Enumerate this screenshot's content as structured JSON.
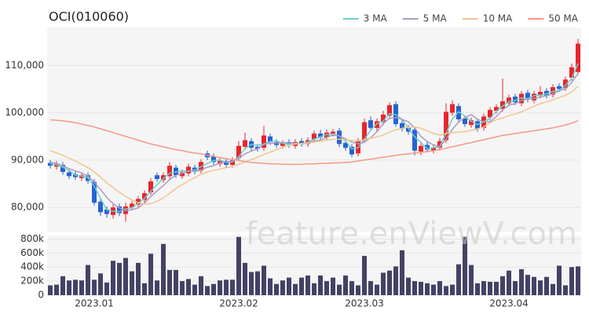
{
  "watermark": "feature.enViewV.com",
  "chart_data": [
    {
      "type": "candlestick",
      "title": "OCI(010060)",
      "up_color": "#e8262c",
      "down_color": "#2463d4",
      "legend": "top-right",
      "grid": true,
      "ylim": [
        74900,
        118000
      ],
      "yticks": [
        {
          "value": 80000,
          "label": "80,000"
        },
        {
          "value": 90000,
          "label": "90,000"
        },
        {
          "value": 100000,
          "label": "100,000"
        },
        {
          "value": 110000,
          "label": "110,000"
        }
      ],
      "open": [
        89400,
        88600,
        89000,
        87400,
        87000,
        86200,
        86800,
        85400,
        81200,
        79600,
        78400,
        80200,
        78600,
        80000,
        80600,
        81600,
        83200,
        86800,
        85800,
        86600,
        88400,
        86600,
        87200,
        88400,
        87800,
        91400,
        90800,
        89200,
        89800,
        89000,
        90400,
        92800,
        94000,
        92800,
        92600,
        95000,
        93800,
        93000,
        93800,
        93000,
        94000,
        93400,
        94400,
        95600,
        94800,
        95600,
        96200,
        93600,
        92800,
        91400,
        94200,
        98400,
        96800,
        98000,
        99400,
        101800,
        97800,
        96800,
        96400,
        91800,
        93200,
        92000,
        92600,
        94200,
        100000,
        101400,
        98800,
        97400,
        98200,
        96800,
        99000,
        100400,
        100800,
        102000,
        103400,
        102000,
        104200,
        102600,
        103600,
        104600,
        103800,
        105600,
        105200,
        107400,
        108600
      ],
      "high": [
        90000,
        89800,
        89600,
        88000,
        87600,
        87400,
        87400,
        86000,
        81800,
        80200,
        80600,
        80800,
        81000,
        81400,
        82400,
        83600,
        86200,
        87400,
        87400,
        89600,
        89000,
        88000,
        89200,
        89000,
        90200,
        92000,
        91400,
        90400,
        90400,
        90600,
        94000,
        95800,
        94600,
        93400,
        97200,
        95600,
        94400,
        94200,
        94400,
        94400,
        94600,
        94800,
        96200,
        96400,
        96400,
        96600,
        96800,
        94200,
        93400,
        94600,
        98800,
        99200,
        98800,
        100400,
        102200,
        102400,
        98400,
        97400,
        97000,
        93600,
        93800,
        93200,
        94600,
        102000,
        102600,
        102000,
        99400,
        99000,
        98800,
        99800,
        101200,
        101800,
        107200,
        103800,
        104000,
        104600,
        104800,
        104600,
        105600,
        105200,
        106000,
        106200,
        107600,
        110400,
        115600
      ],
      "low": [
        88200,
        88000,
        86900,
        86000,
        85800,
        85600,
        85000,
        80400,
        78200,
        77800,
        77600,
        78200,
        77000,
        79400,
        80000,
        81000,
        82600,
        85400,
        85200,
        86000,
        86200,
        86000,
        86600,
        87000,
        87200,
        90000,
        89000,
        88600,
        88400,
        88400,
        89800,
        92200,
        92000,
        91800,
        92000,
        93200,
        92600,
        92400,
        92600,
        92400,
        92800,
        92800,
        93800,
        94200,
        94200,
        95000,
        92800,
        92000,
        90600,
        90800,
        93600,
        96200,
        96200,
        97400,
        98800,
        97000,
        96000,
        95400,
        91000,
        91000,
        91600,
        91400,
        92000,
        93600,
        99400,
        98000,
        97000,
        96800,
        96000,
        96200,
        98400,
        99800,
        100200,
        101400,
        101600,
        101400,
        102200,
        102000,
        103000,
        103000,
        103200,
        104400,
        104600,
        106800,
        108000
      ],
      "close": [
        88800,
        89200,
        87500,
        86600,
        86400,
        86800,
        85600,
        81000,
        79000,
        78600,
        80000,
        78800,
        80200,
        80800,
        81800,
        83000,
        85500,
        86000,
        86800,
        88800,
        86800,
        87400,
        88600,
        87600,
        89600,
        90600,
        89600,
        89800,
        89000,
        90000,
        93000,
        94200,
        92600,
        92400,
        95200,
        93800,
        93200,
        93600,
        93200,
        93800,
        93400,
        94200,
        95600,
        94800,
        95800,
        96000,
        93400,
        92600,
        91200,
        94000,
        98000,
        96800,
        98200,
        99600,
        101600,
        97600,
        96600,
        96000,
        92000,
        93000,
        92200,
        92600,
        94000,
        100200,
        101800,
        98600,
        97600,
        98400,
        96600,
        99200,
        100600,
        101200,
        102400,
        103200,
        102200,
        104000,
        102800,
        104000,
        104400,
        103600,
        105400,
        105000,
        107000,
        109600,
        114600
      ],
      "series": [
        {
          "name": "3 MA",
          "color": "#6fcfc9",
          "values": [
            89200,
            89000,
            88500,
            87800,
            86800,
            86600,
            86300,
            84500,
            81900,
            79500,
            79200,
            79100,
            79700,
            79900,
            80900,
            81900,
            83400,
            84800,
            86100,
            87200,
            87500,
            87700,
            87600,
            87900,
            88600,
            89300,
            89900,
            90000,
            89500,
            89600,
            90700,
            92400,
            93300,
            93100,
            93400,
            93900,
            94100,
            93500,
            93300,
            93500,
            93500,
            93800,
            94400,
            94900,
            95400,
            95500,
            95100,
            94000,
            92400,
            92600,
            94400,
            96300,
            97700,
            98200,
            99800,
            99600,
            98600,
            96700,
            94900,
            93700,
            92400,
            92600,
            92900,
            95600,
            98700,
            100200,
            99300,
            98200,
            97500,
            98100,
            98800,
            100300,
            101400,
            102300,
            102600,
            103100,
            103000,
            103600,
            103700,
            104000,
            104500,
            104700,
            105800,
            107200,
            110400
          ]
        },
        {
          "name": "5 MA",
          "color": "#a99bc4",
          "values": [
            89500,
            89300,
            88800,
            88200,
            87700,
            87300,
            86600,
            85300,
            83800,
            82100,
            80800,
            79900,
            79300,
            79500,
            79900,
            80900,
            82300,
            83500,
            84600,
            85900,
            86800,
            87200,
            87700,
            87600,
            87900,
            88500,
            88800,
            89400,
            89600,
            89800,
            90400,
            91300,
            91900,
            92400,
            93300,
            93600,
            93600,
            93700,
            93600,
            93500,
            93400,
            93600,
            94000,
            94200,
            94800,
            95300,
            95100,
            94500,
            93800,
            93400,
            93800,
            94700,
            96000,
            97700,
            98800,
            99000,
            98600,
            98100,
            96800,
            95000,
            93900,
            93200,
            92800,
            94400,
            96500,
            98000,
            99000,
            99600,
            98600,
            98100,
            98100,
            99200,
            100600,
            101600,
            101900,
            102600,
            102900,
            103000,
            103300,
            103600,
            104000,
            104600,
            105100,
            106400,
            108300
          ]
        },
        {
          "name": "10 MA",
          "color": "#f0c592",
          "values": [
            92000,
            91500,
            91000,
            90400,
            89800,
            89100,
            88400,
            87500,
            86400,
            85200,
            84200,
            83200,
            82300,
            81600,
            81000,
            80700,
            80800,
            81300,
            82000,
            83000,
            84000,
            84800,
            85600,
            86300,
            87000,
            87500,
            87800,
            88100,
            88400,
            88700,
            89100,
            89600,
            90100,
            90600,
            91200,
            91700,
            92200,
            92700,
            93100,
            93400,
            93500,
            93600,
            93800,
            94000,
            94200,
            94400,
            94400,
            94300,
            94100,
            94000,
            94300,
            94600,
            94900,
            95300,
            95900,
            96400,
            96700,
            97000,
            97000,
            96700,
            96200,
            95600,
            95300,
            95600,
            95800,
            95900,
            96000,
            96300,
            96600,
            97000,
            97900,
            98500,
            98900,
            99400,
            99700,
            100200,
            100800,
            101400,
            101900,
            102300,
            102700,
            103200,
            103700,
            104400,
            105600
          ]
        },
        {
          "name": "50 MA",
          "color": "#f29a86",
          "values": [
            98500,
            98400,
            98300,
            98100,
            97900,
            97600,
            97300,
            97000,
            96600,
            96200,
            95800,
            95400,
            95000,
            94600,
            94200,
            93800,
            93400,
            93100,
            92800,
            92500,
            92200,
            92000,
            91700,
            91500,
            91300,
            91000,
            90800,
            90500,
            90300,
            90100,
            89900,
            89700,
            89500,
            89400,
            89300,
            89200,
            89200,
            89100,
            89100,
            89100,
            89100,
            89200,
            89200,
            89300,
            89300,
            89400,
            89400,
            89500,
            89600,
            89800,
            90000,
            90200,
            90400,
            90600,
            90800,
            91000,
            91200,
            91300,
            91500,
            91600,
            91800,
            92000,
            92200,
            92500,
            92800,
            93100,
            93400,
            93700,
            94000,
            94300,
            94600,
            94900,
            95200,
            95400,
            95600,
            95800,
            96000,
            96200,
            96400,
            96600,
            96800,
            97100,
            97400,
            97800,
            98300
          ]
        }
      ]
    },
    {
      "type": "bar",
      "color": "#434265",
      "grid": true,
      "ylim": [
        0,
        850000
      ],
      "yticks": [
        0,
        {
          "value": 200000,
          "label": "200k"
        },
        {
          "value": 400000,
          "label": "400k"
        },
        {
          "value": 600000,
          "label": "600k"
        },
        {
          "value": 800000,
          "label": "800k"
        }
      ],
      "categories": [
        null,
        null,
        null,
        null,
        null,
        null,
        null,
        "2023.01",
        null,
        null,
        null,
        null,
        null,
        null,
        null,
        null,
        null,
        null,
        null,
        null,
        null,
        null,
        null,
        null,
        null,
        null,
        null,
        null,
        null,
        null,
        "2023.02",
        null,
        null,
        null,
        null,
        null,
        null,
        null,
        null,
        null,
        null,
        null,
        null,
        null,
        null,
        null,
        null,
        null,
        null,
        null,
        "2023.03",
        null,
        null,
        null,
        null,
        null,
        null,
        null,
        null,
        null,
        null,
        null,
        null,
        null,
        null,
        null,
        null,
        null,
        null,
        null,
        null,
        null,
        null,
        "2023.04",
        null,
        null,
        null,
        null,
        null,
        null,
        null,
        null,
        null,
        null,
        null
      ],
      "values": [
        140000,
        150000,
        270000,
        210000,
        220000,
        210000,
        430000,
        220000,
        310000,
        180000,
        490000,
        460000,
        530000,
        340000,
        460000,
        170000,
        590000,
        210000,
        730000,
        360000,
        360000,
        200000,
        230000,
        150000,
        270000,
        130000,
        160000,
        210000,
        220000,
        220000,
        830000,
        460000,
        330000,
        340000,
        420000,
        240000,
        160000,
        210000,
        250000,
        160000,
        250000,
        280000,
        170000,
        280000,
        200000,
        250000,
        150000,
        280000,
        200000,
        140000,
        560000,
        200000,
        150000,
        320000,
        350000,
        410000,
        640000,
        250000,
        200000,
        190000,
        170000,
        150000,
        200000,
        130000,
        150000,
        440000,
        830000,
        430000,
        170000,
        200000,
        190000,
        190000,
        270000,
        350000,
        200000,
        370000,
        290000,
        260000,
        210000,
        260000,
        160000,
        420000,
        140000,
        400000,
        410000
      ]
    }
  ]
}
